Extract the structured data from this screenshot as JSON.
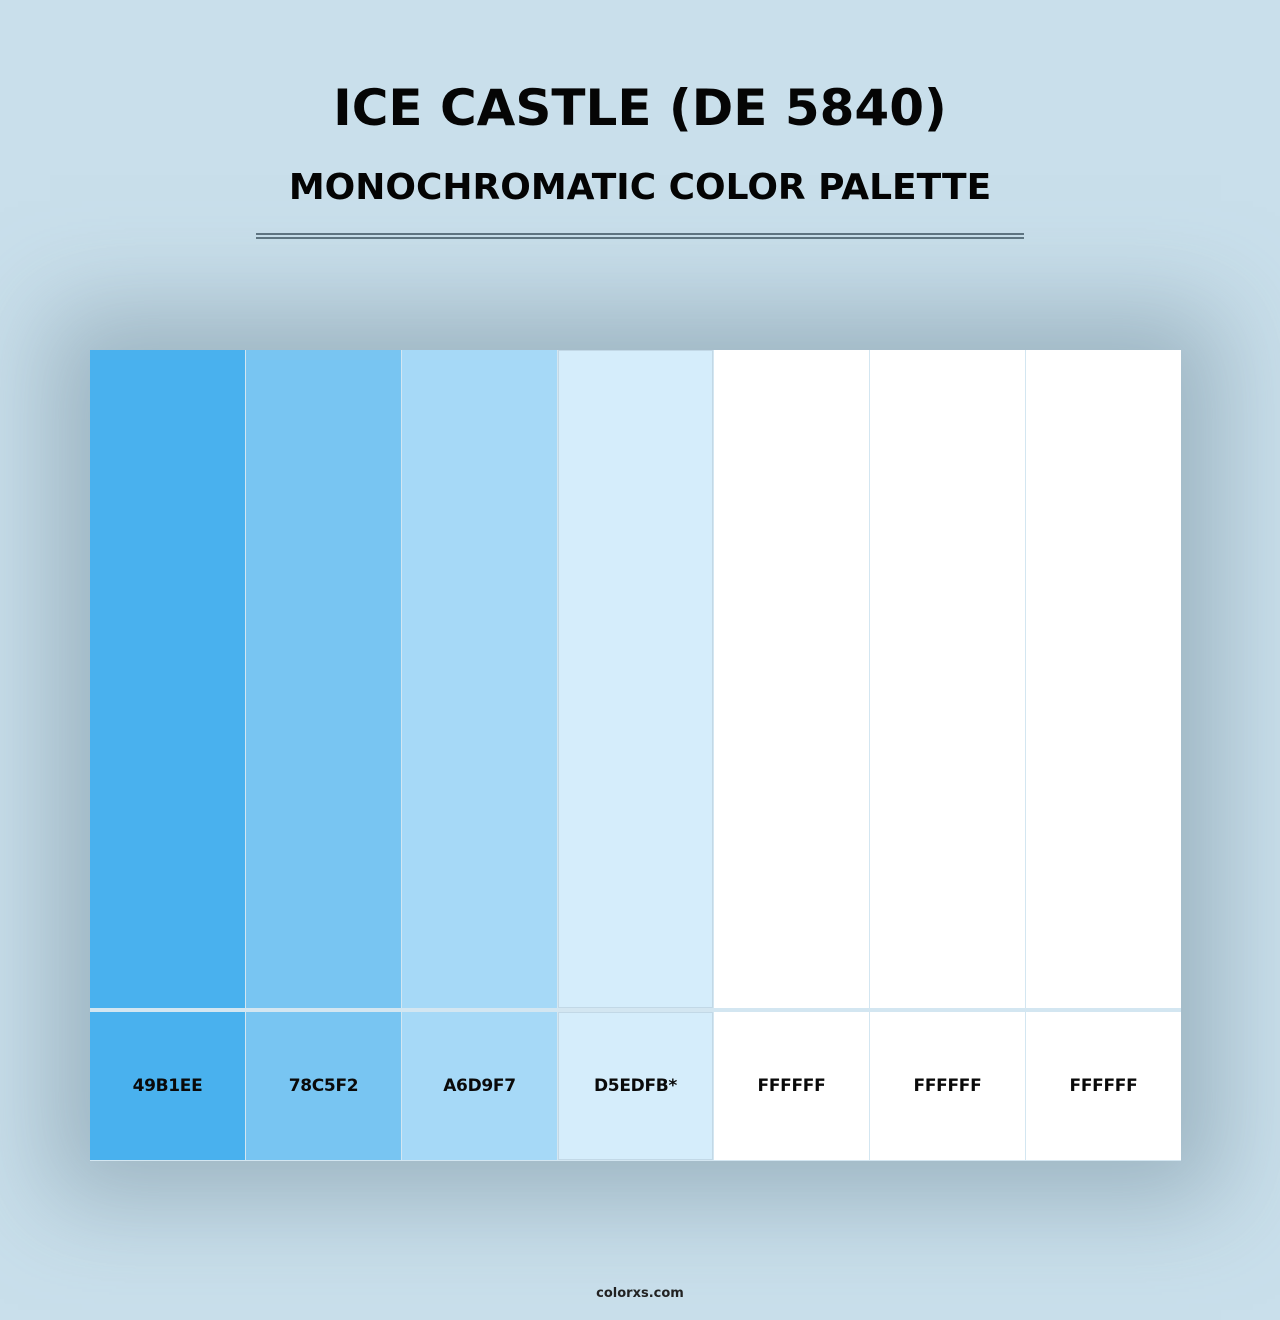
{
  "header": {
    "title": "ICE CASTLE (DE 5840)",
    "subtitle": "MONOCHROMATIC COLOR PALETTE"
  },
  "palette": {
    "swatches": [
      {
        "hex": "#49B1EE",
        "label": "49B1EE"
      },
      {
        "hex": "#78C5F2",
        "label": "78C5F2"
      },
      {
        "hex": "#A6D9F7",
        "label": "A6D9F7"
      },
      {
        "hex": "#D5EDFB",
        "label": "D5EDFB*"
      },
      {
        "hex": "#FFFFFF",
        "label": "FFFFFF"
      },
      {
        "hex": "#FFFFFF",
        "label": "FFFFFF"
      },
      {
        "hex": "#FFFFFF",
        "label": "FFFFFF"
      }
    ]
  },
  "colors": {
    "background": "#c9dfeb",
    "divider": "#5e7380",
    "text": "#050505"
  },
  "footer": {
    "site": "colorxs.com"
  }
}
